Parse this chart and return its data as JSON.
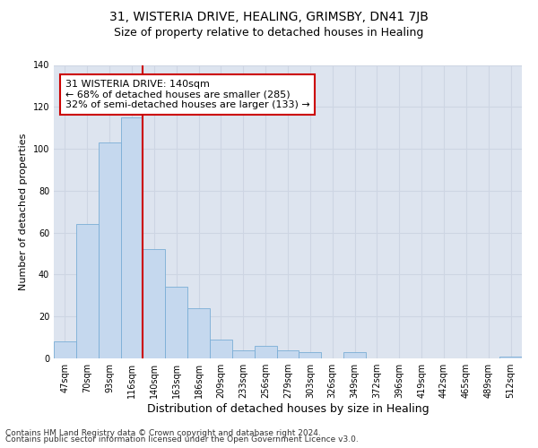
{
  "title_line1": "31, WISTERIA DRIVE, HEALING, GRIMSBY, DN41 7JB",
  "title_line2": "Size of property relative to detached houses in Healing",
  "xlabel": "Distribution of detached houses by size in Healing",
  "ylabel": "Number of detached properties",
  "bar_labels": [
    "47sqm",
    "70sqm",
    "93sqm",
    "116sqm",
    "140sqm",
    "163sqm",
    "186sqm",
    "209sqm",
    "233sqm",
    "256sqm",
    "279sqm",
    "303sqm",
    "326sqm",
    "349sqm",
    "372sqm",
    "396sqm",
    "419sqm",
    "442sqm",
    "465sqm",
    "489sqm",
    "512sqm"
  ],
  "bar_values": [
    8,
    64,
    103,
    115,
    52,
    34,
    24,
    9,
    4,
    6,
    4,
    3,
    0,
    3,
    0,
    0,
    0,
    0,
    0,
    0,
    1
  ],
  "bar_color": "#c5d8ee",
  "bar_edge_color": "#7aaed6",
  "vline_color": "#cc0000",
  "annotation_text": "31 WISTERIA DRIVE: 140sqm\n← 68% of detached houses are smaller (285)\n32% of semi-detached houses are larger (133) →",
  "annotation_box_edge_color": "#cc0000",
  "ylim": [
    0,
    140
  ],
  "yticks": [
    0,
    20,
    40,
    60,
    80,
    100,
    120,
    140
  ],
  "grid_color": "#cdd5e3",
  "background_color": "#dde4ef",
  "footer_line1": "Contains HM Land Registry data © Crown copyright and database right 2024.",
  "footer_line2": "Contains public sector information licensed under the Open Government Licence v3.0.",
  "title_fontsize": 10,
  "subtitle_fontsize": 9,
  "xlabel_fontsize": 9,
  "ylabel_fontsize": 8,
  "tick_fontsize": 7,
  "annot_fontsize": 8,
  "footer_fontsize": 6.5
}
